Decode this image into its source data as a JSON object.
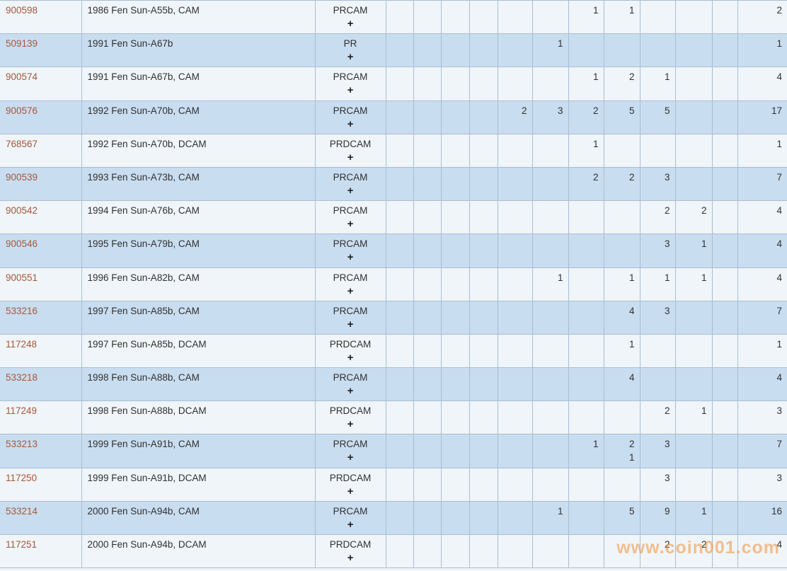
{
  "colors": {
    "row_shade": "#c9ddf0",
    "row_light": "#f0f5f9",
    "border": "#a9bed3",
    "id_link": "#a5583a",
    "text": "#303030"
  },
  "watermark": {
    "text": "www.coin001.com"
  },
  "table": {
    "rows": [
      {
        "id": "900598",
        "description": "1986 Fen Sun-A55b, CAM",
        "type": "PRCAM",
        "expand": "+",
        "counts": [
          "",
          "",
          "",
          "",
          "",
          "",
          "1",
          "1",
          "",
          "",
          ""
        ],
        "total": "2"
      },
      {
        "id": "509139",
        "description": "1991 Fen Sun-A67b",
        "type": "PR",
        "expand": "+",
        "counts": [
          "",
          "",
          "",
          "",
          "",
          "1",
          "",
          "",
          "",
          "",
          ""
        ],
        "total": "1"
      },
      {
        "id": "900574",
        "description": "1991 Fen Sun-A67b, CAM",
        "type": "PRCAM",
        "expand": "+",
        "counts": [
          "",
          "",
          "",
          "",
          "",
          "",
          "1",
          "2",
          "1",
          "",
          ""
        ],
        "total": "4"
      },
      {
        "id": "900576",
        "description": "1992 Fen Sun-A70b, CAM",
        "type": "PRCAM",
        "expand": "+",
        "counts": [
          "",
          "",
          "",
          "",
          "2",
          "3",
          "2",
          "5",
          "5",
          "",
          ""
        ],
        "total": "17"
      },
      {
        "id": "768567",
        "description": "1992 Fen Sun-A70b, DCAM",
        "type": "PRDCAM",
        "expand": "+",
        "counts": [
          "",
          "",
          "",
          "",
          "",
          "",
          "1",
          "",
          "",
          "",
          ""
        ],
        "total": "1"
      },
      {
        "id": "900539",
        "description": "1993 Fen Sun-A73b, CAM",
        "type": "PRCAM",
        "expand": "+",
        "counts": [
          "",
          "",
          "",
          "",
          "",
          "",
          "2",
          "2",
          "3",
          "",
          ""
        ],
        "total": "7"
      },
      {
        "id": "900542",
        "description": "1994 Fen Sun-A76b, CAM",
        "type": "PRCAM",
        "expand": "+",
        "counts": [
          "",
          "",
          "",
          "",
          "",
          "",
          "",
          "",
          "2",
          "2",
          ""
        ],
        "total": "4"
      },
      {
        "id": "900546",
        "description": "1995 Fen Sun-A79b, CAM",
        "type": "PRCAM",
        "expand": "+",
        "counts": [
          "",
          "",
          "",
          "",
          "",
          "",
          "",
          "",
          "3",
          "1",
          ""
        ],
        "total": "4"
      },
      {
        "id": "900551",
        "description": "1996 Fen Sun-A82b, CAM",
        "type": "PRCAM",
        "expand": "+",
        "counts": [
          "",
          "",
          "",
          "",
          "",
          "1",
          "",
          "1",
          "1",
          "1",
          ""
        ],
        "total": "4"
      },
      {
        "id": "533216",
        "description": "1997 Fen Sun-A85b, CAM",
        "type": "PRCAM",
        "expand": "+",
        "counts": [
          "",
          "",
          "",
          "",
          "",
          "",
          "",
          "4",
          "3",
          "",
          ""
        ],
        "total": "7"
      },
      {
        "id": "117248",
        "description": "1997 Fen Sun-A85b, DCAM",
        "type": "PRDCAM",
        "expand": "+",
        "counts": [
          "",
          "",
          "",
          "",
          "",
          "",
          "",
          "1",
          "",
          "",
          ""
        ],
        "total": "1"
      },
      {
        "id": "533218",
        "description": "1998 Fen Sun-A88b, CAM",
        "type": "PRCAM",
        "expand": "+",
        "counts": [
          "",
          "",
          "",
          "",
          "",
          "",
          "",
          "4",
          "",
          "",
          ""
        ],
        "total": "4"
      },
      {
        "id": "117249",
        "description": "1998 Fen Sun-A88b, DCAM",
        "type": "PRDCAM",
        "expand": "+",
        "counts": [
          "",
          "",
          "",
          "",
          "",
          "",
          "",
          "",
          "2",
          "1",
          ""
        ],
        "total": "3"
      },
      {
        "id": "533213",
        "description": "1999 Fen Sun-A91b, CAM",
        "type": "PRCAM",
        "expand": "+",
        "counts": [
          "",
          "",
          "",
          "",
          "",
          "",
          "1",
          "2\n1",
          "3",
          "",
          ""
        ],
        "total": "7"
      },
      {
        "id": "117250",
        "description": "1999 Fen Sun-A91b, DCAM",
        "type": "PRDCAM",
        "expand": "+",
        "counts": [
          "",
          "",
          "",
          "",
          "",
          "",
          "",
          "",
          "3",
          "",
          ""
        ],
        "total": "3"
      },
      {
        "id": "533214",
        "description": "2000 Fen Sun-A94b, CAM",
        "type": "PRCAM",
        "expand": "+",
        "counts": [
          "",
          "",
          "",
          "",
          "",
          "1",
          "",
          "5",
          "9",
          "1",
          ""
        ],
        "total": "16"
      },
      {
        "id": "117251",
        "description": "2000 Fen Sun-A94b, DCAM",
        "type": "PRDCAM",
        "expand": "+",
        "counts": [
          "",
          "",
          "",
          "",
          "",
          "",
          "",
          "",
          "2",
          "2",
          ""
        ],
        "total": "4"
      }
    ]
  }
}
